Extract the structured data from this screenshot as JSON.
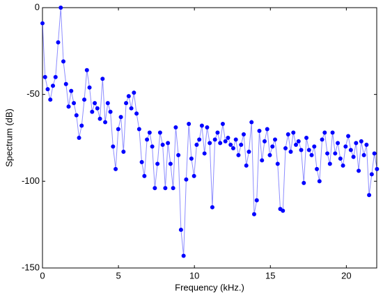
{
  "chart_data": {
    "type": "line",
    "xlabel": "Frequency (kHz.)",
    "ylabel": "Spectrum (dB)",
    "xlim": [
      0,
      22
    ],
    "ylim": [
      -150,
      0
    ],
    "xticks": [
      0,
      5,
      10,
      15,
      20
    ],
    "yticks": [
      -150,
      -100,
      -50,
      0
    ],
    "x": [
      0,
      0.172,
      0.344,
      0.516,
      0.688,
      0.86,
      1.032,
      1.204,
      1.376,
      1.548,
      1.72,
      1.892,
      2.064,
      2.236,
      2.408,
      2.58,
      2.752,
      2.924,
      3.096,
      3.268,
      3.44,
      3.612,
      3.784,
      3.956,
      4.128,
      4.3,
      4.472,
      4.644,
      4.816,
      4.988,
      5.16,
      5.332,
      5.504,
      5.676,
      5.848,
      6.02,
      6.192,
      6.364,
      6.536,
      6.708,
      6.88,
      7.052,
      7.224,
      7.396,
      7.568,
      7.74,
      7.912,
      8.084,
      8.256,
      8.428,
      8.6,
      8.772,
      8.944,
      9.116,
      9.288,
      9.46,
      9.632,
      9.804,
      9.976,
      10.148,
      10.32,
      10.492,
      10.664,
      10.836,
      11.008,
      11.18,
      11.352,
      11.524,
      11.696,
      11.868,
      12.04,
      12.212,
      12.384,
      12.556,
      12.728,
      12.9,
      13.072,
      13.244,
      13.416,
      13.588,
      13.76,
      13.932,
      14.104,
      14.276,
      14.448,
      14.62,
      14.792,
      14.964,
      15.136,
      15.308,
      15.48,
      15.652,
      15.824,
      15.996,
      16.168,
      16.34,
      16.512,
      16.684,
      16.856,
      17.028,
      17.2,
      17.372,
      17.544,
      17.716,
      17.888,
      18.06,
      18.232,
      18.404,
      18.576,
      18.748,
      18.92,
      19.092,
      19.264,
      19.436,
      19.608,
      19.78,
      19.952,
      20.124,
      20.296,
      20.468,
      20.64,
      20.812,
      20.984,
      21.156,
      21.328,
      21.5,
      21.672,
      21.844,
      22.016
    ],
    "series": [
      {
        "color": "#0000ff",
        "values": [
          -9,
          -40,
          -47,
          -53,
          -45,
          -40,
          -20,
          0,
          -31,
          -44,
          -57,
          -48,
          -55,
          -62,
          -75,
          -68,
          -53,
          -36,
          -46,
          -60,
          -55,
          -58,
          -64,
          -41,
          -66,
          -55,
          -60,
          -80,
          -93,
          -70,
          -63,
          -83,
          -55,
          -51,
          -58,
          -49,
          -61,
          -70,
          -89,
          -97,
          -76,
          -72,
          -80,
          -104,
          -90,
          -72,
          -79,
          -104,
          -78,
          -90,
          -104,
          -69,
          -85,
          -128,
          -143,
          -99,
          -67,
          -87,
          -97,
          -79,
          -76,
          -68,
          -84,
          -69,
          -78,
          -115,
          -76,
          -72,
          -78,
          -67,
          -77,
          -75,
          -79,
          -81,
          -76,
          -85,
          -79,
          -73,
          -91,
          -83,
          -66,
          -119,
          -111,
          -71,
          -88,
          -77,
          -70,
          -85,
          -80,
          -76,
          -90,
          -116,
          -117,
          -81,
          -73,
          -83,
          -72,
          -79,
          -77,
          -82,
          -101,
          -75,
          -82,
          -85,
          -80,
          -93,
          -100,
          -76,
          -72,
          -84,
          -90,
          -72,
          -84,
          -78,
          -87,
          -91,
          -80,
          -74,
          -82,
          -86,
          -78,
          -94,
          -77,
          -85,
          -79,
          -108,
          -96,
          -84,
          -93
        ]
      }
    ]
  }
}
